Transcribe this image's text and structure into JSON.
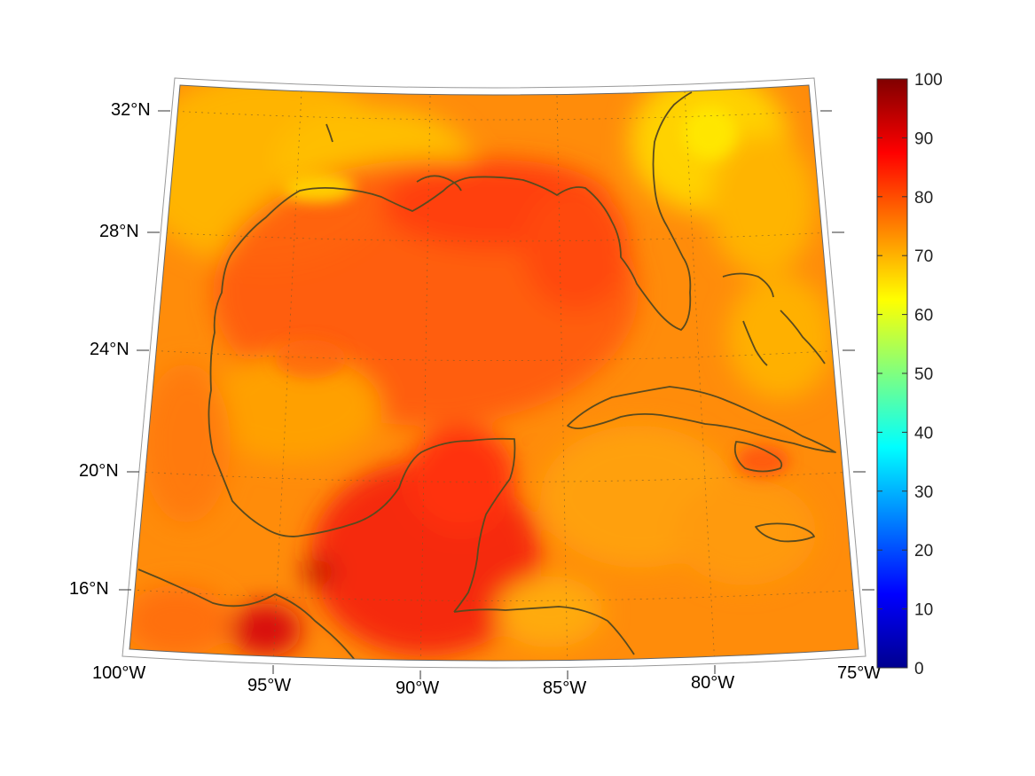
{
  "map": {
    "lat_labels": [
      "32°N",
      "28°N",
      "24°N",
      "20°N",
      "16°N"
    ],
    "lon_labels": [
      "100°W",
      "95°W",
      "90°W",
      "85°W",
      "80°W",
      "75°W"
    ],
    "extent": {
      "lon_min": -100,
      "lon_max": -75,
      "lat_min": 14,
      "lat_max": 33
    },
    "gridlines": true,
    "coastline_color": "#5a4a1e"
  },
  "colorbar": {
    "ticks": [
      "100",
      "90",
      "80",
      "70",
      "60",
      "50",
      "40",
      "30",
      "20",
      "10",
      "0"
    ],
    "range": [
      0,
      100
    ],
    "colormap": "jet"
  }
}
